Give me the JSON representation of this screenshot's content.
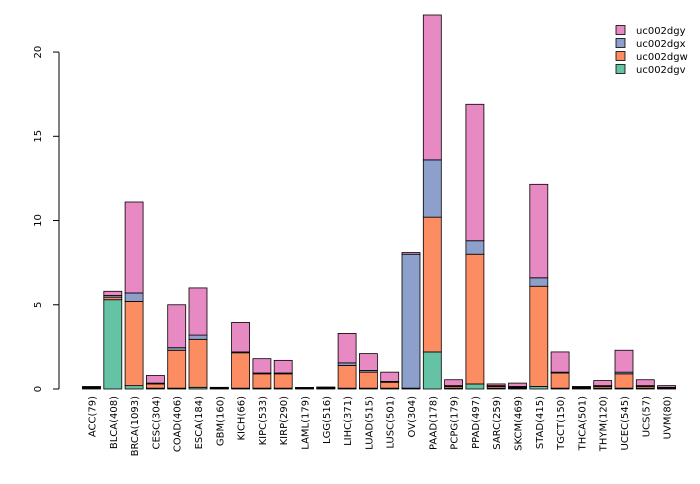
{
  "chart_data": {
    "type": "bar",
    "stacked": true,
    "title": "",
    "xlabel": "",
    "ylabel": "",
    "ylim": [
      0,
      22.2
    ],
    "yticks": [
      0,
      5,
      10,
      15,
      20
    ],
    "grid": false,
    "legend_position": "top-right",
    "categories": [
      "ACC(79)",
      "BLCA(408)",
      "BRCA(1093)",
      "CESC(304)",
      "COAD(406)",
      "ESCA(184)",
      "GBM(160)",
      "KICH(66)",
      "KIPC(533)",
      "KIRP(290)",
      "LAML(179)",
      "LGG(516)",
      "LIHC(371)",
      "LUAD(515)",
      "LUSC(501)",
      "OV(304)",
      "PAAD(178)",
      "PCPG(179)",
      "PPAD(497)",
      "SARC(259)",
      "SKCM(469)",
      "STAD(415)",
      "TGCT(150)",
      "THCA(501)",
      "THYM(120)",
      "UCEC(545)",
      "UCS(57)",
      "UVM(80)"
    ],
    "series": [
      {
        "name": "uc002dgv",
        "color": "#66C2A5",
        "values": [
          0.05,
          5.3,
          0.2,
          0.05,
          0.05,
          0.1,
          0.02,
          0.05,
          0.05,
          0.05,
          0.02,
          0.02,
          0.05,
          0.05,
          0.05,
          0.05,
          2.2,
          0.05,
          0.3,
          0.05,
          0.05,
          0.15,
          0.05,
          0.05,
          0.05,
          0.05,
          0.05,
          0.02
        ]
      },
      {
        "name": "uc002dgw",
        "color": "#FC8D62",
        "values": [
          0.03,
          0.15,
          5.0,
          0.25,
          2.25,
          2.85,
          0.03,
          2.1,
          0.85,
          0.85,
          0.02,
          0.03,
          1.35,
          0.95,
          0.35,
          0.0,
          8.0,
          0.1,
          7.7,
          0.1,
          0.05,
          5.95,
          0.9,
          0.03,
          0.1,
          0.85,
          0.1,
          0.05
        ]
      },
      {
        "name": "uc002dgx",
        "color": "#8DA0CB",
        "values": [
          0.02,
          0.1,
          0.5,
          0.05,
          0.15,
          0.25,
          0.0,
          0.05,
          0.05,
          0.05,
          0.0,
          0.02,
          0.15,
          0.1,
          0.05,
          7.95,
          3.4,
          0.05,
          0.8,
          0.05,
          0.05,
          0.5,
          0.05,
          0.02,
          0.05,
          0.1,
          0.05,
          0.03
        ]
      },
      {
        "name": "uc002dgy",
        "color": "#E78AC3",
        "values": [
          0.05,
          0.25,
          5.4,
          0.45,
          2.55,
          2.8,
          0.0,
          1.75,
          0.85,
          0.75,
          0.0,
          0.03,
          1.75,
          1.0,
          0.55,
          0.1,
          8.6,
          0.35,
          8.1,
          0.1,
          0.2,
          5.55,
          1.2,
          0.05,
          0.3,
          1.3,
          0.35,
          0.1
        ]
      }
    ]
  }
}
